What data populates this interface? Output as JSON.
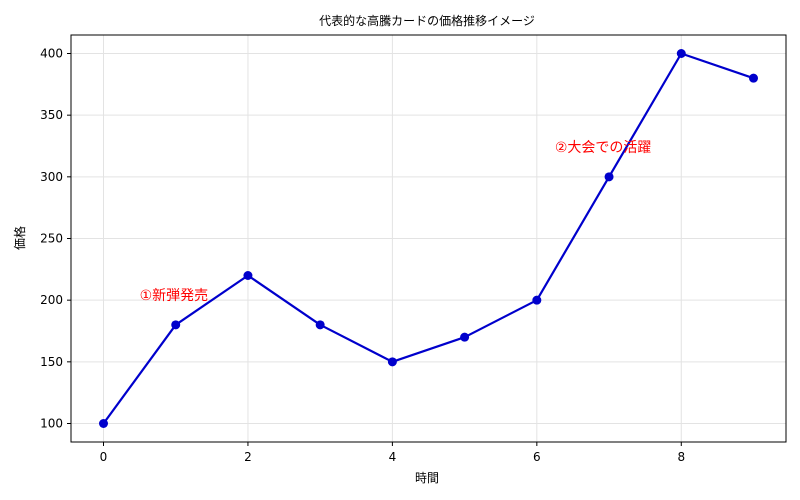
{
  "chart_data": {
    "type": "line",
    "title": "代表的な高騰カードの価格推移イメージ",
    "xlabel": "時間",
    "ylabel": "価格",
    "x": [
      0,
      1,
      2,
      3,
      4,
      5,
      6,
      7,
      8,
      9
    ],
    "series": [
      {
        "values": [
          100,
          180,
          220,
          180,
          150,
          170,
          200,
          300,
          400,
          380
        ],
        "color": "#0000cc"
      }
    ],
    "xlim": [
      -0.45,
      9.45
    ],
    "ylim": [
      85,
      415
    ],
    "xticks": [
      0,
      2,
      4,
      6,
      8
    ],
    "yticks": [
      100,
      150,
      200,
      250,
      300,
      350,
      400
    ],
    "grid": true,
    "annotations": [
      {
        "text": "①新弾発売",
        "x": 0.5,
        "y": 200,
        "color": "#ff0000"
      },
      {
        "text": "②大会での活躍",
        "x": 6.25,
        "y": 320,
        "color": "#ff0000"
      }
    ]
  }
}
